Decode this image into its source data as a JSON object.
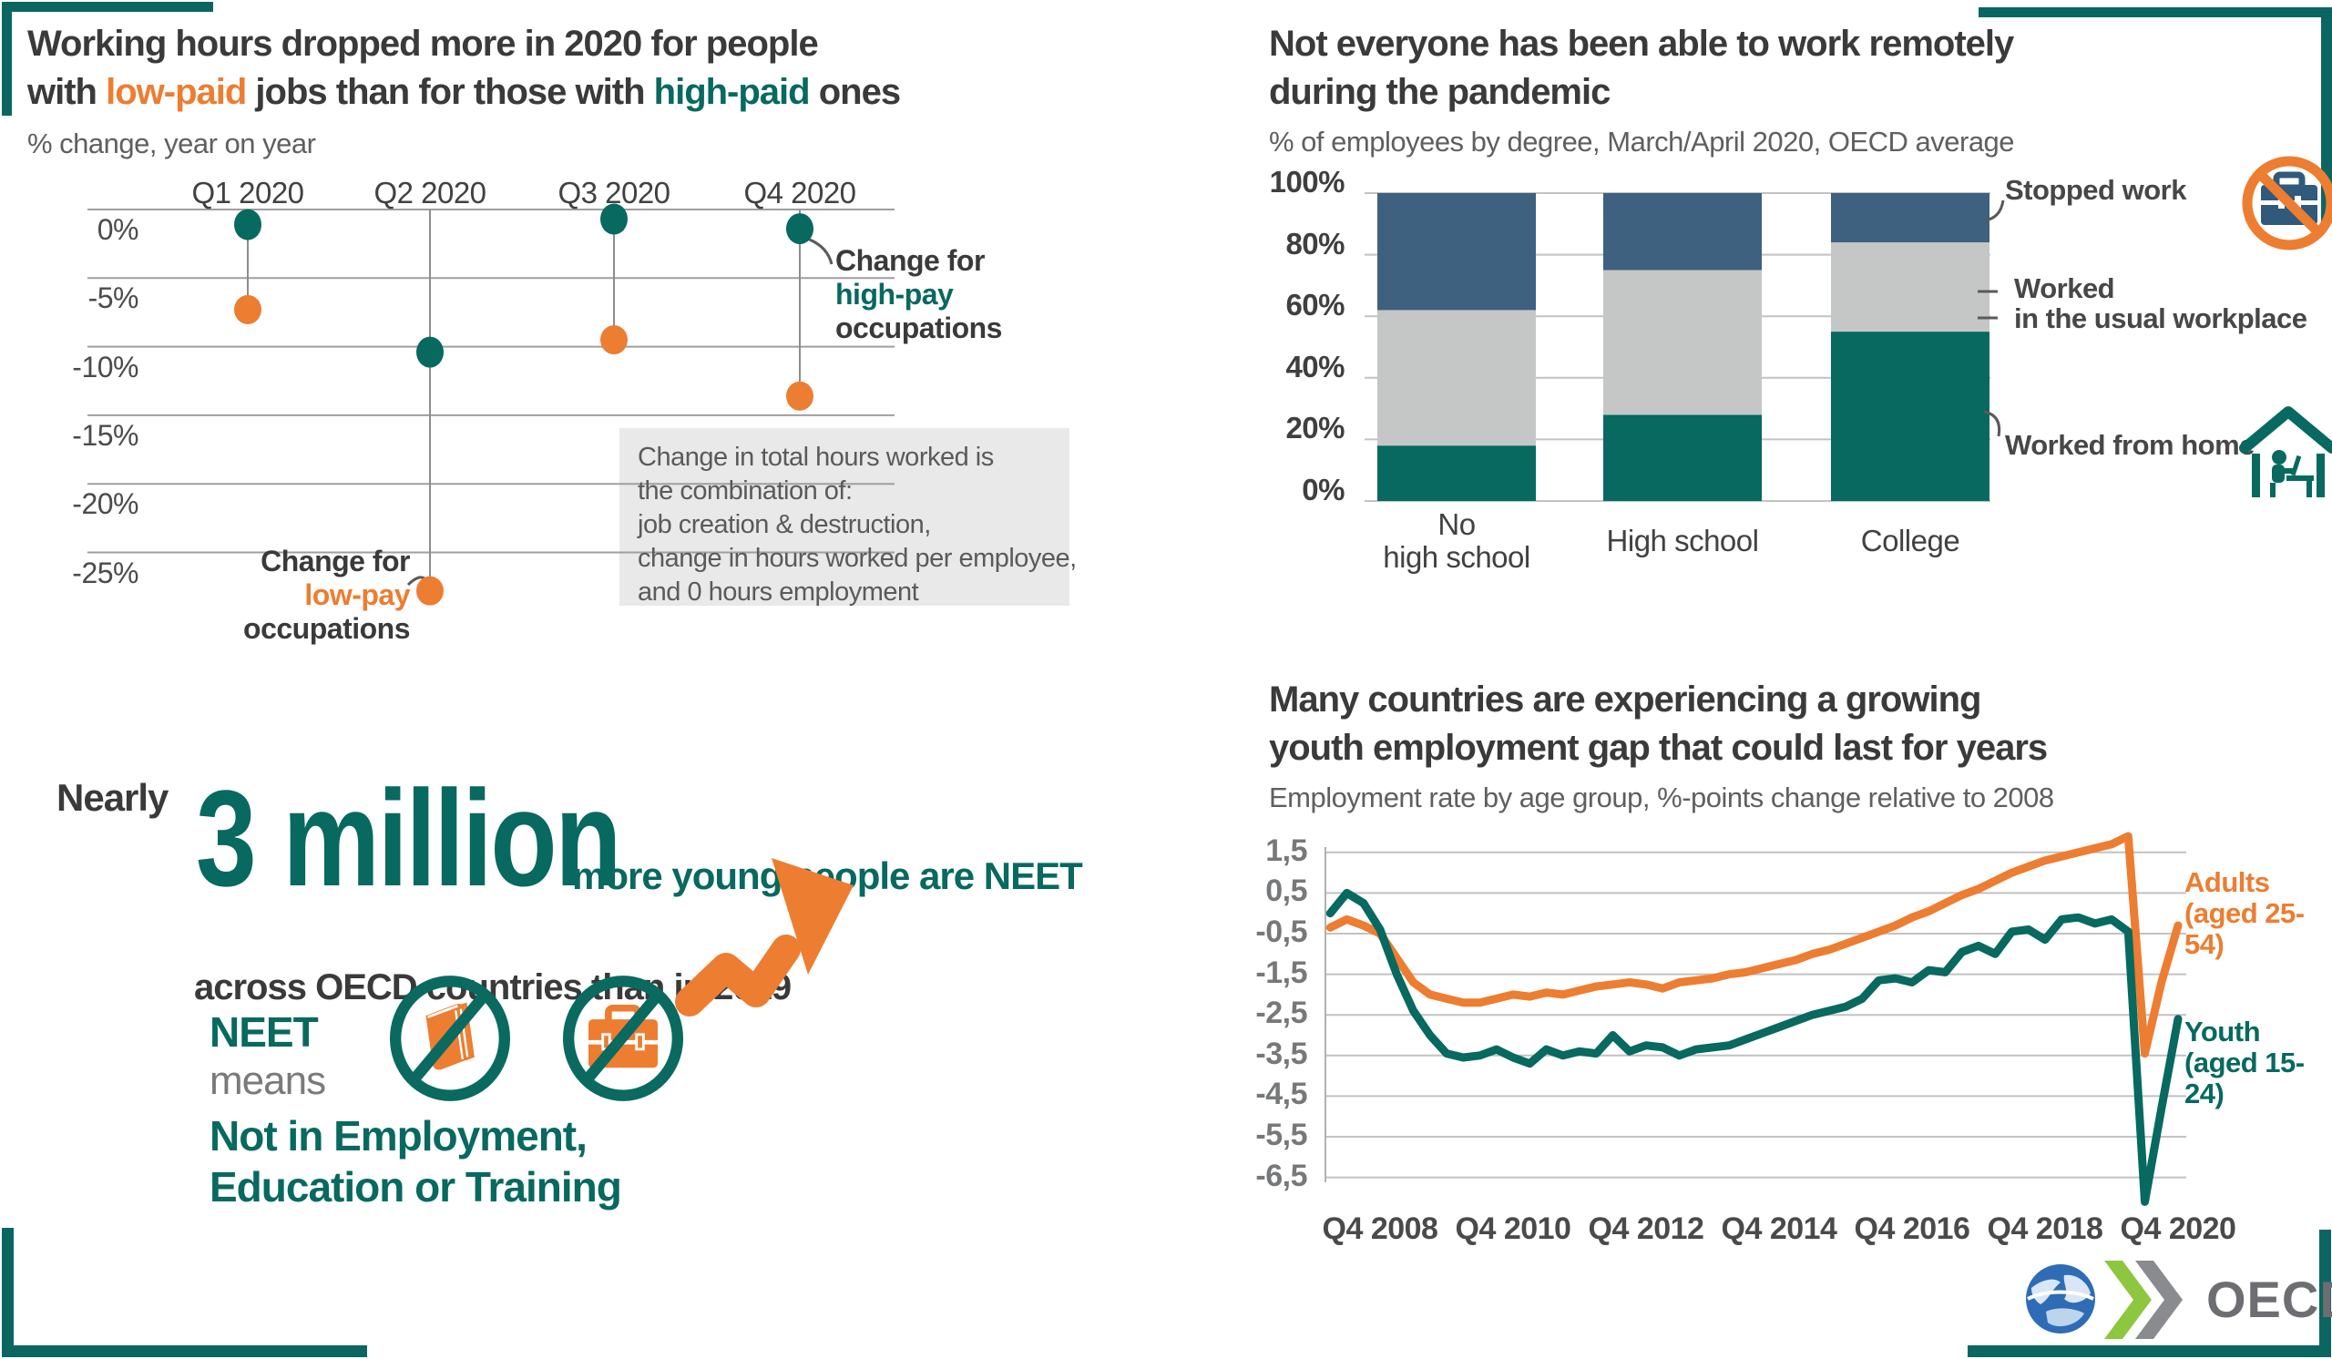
{
  "palette": {
    "teal": "#07695f",
    "orange": "#ed7d31",
    "steel_blue": "#3d617e",
    "light_gray": "#c5c7c6",
    "dark_text": "#3a3a3a",
    "gray_text": "#5f5f5f",
    "grid": "#9f9f9f",
    "note_box": "#e9e9e9",
    "corner": "#0b6661",
    "logo_gray": "#6d6e71",
    "chevron_green": "#8dc63f",
    "chevron_gray": "#898b8e",
    "globe_blue": "#2e6cb5"
  },
  "hours_section": {
    "title_line1": "Working hours dropped more in 2020 for people",
    "title_line2_pre": "with ",
    "title_low": "low-paid",
    "title_mid": " jobs than for those with ",
    "title_high": "high-paid",
    "title_line2_post": " ones",
    "subtitle": "% change, year on year",
    "legend_high": {
      "l1": "Change for",
      "l2": "high-pay",
      "l3": "occupations"
    },
    "legend_low": {
      "l1": "Change for",
      "l2": "low-pay",
      "l3": "occupations"
    },
    "note_lines": [
      "Change in total hours worked is",
      "the combination of:",
      "job creation & destruction,",
      "change in hours worked per employee,",
      "and 0 hours employment"
    ]
  },
  "remote_section": {
    "title_line1": "Not everyone has been able to work remotely",
    "title_line2": "during the pandemic",
    "subtitle": "% of employees by degree, March/April 2020, OECD average",
    "legend": {
      "stopped": "Stopped work",
      "usual_l1": "Worked",
      "usual_l2": "in the usual workplace",
      "home": "Worked from home"
    }
  },
  "neet_section": {
    "nearly": "Nearly",
    "big_number": "3 million",
    "tail": "more young people are NEET",
    "line2": "across OECD countries than in 2019",
    "neet": "NEET",
    "means": "means",
    "def_line1": "Not in Employment,",
    "def_line2": "Education or Training"
  },
  "employment_section": {
    "title_line1": "Many countries are experiencing a growing",
    "title_line2": "youth employment gap that could last for years",
    "subtitle": "Employment rate by age group, %-points change relative to 2008",
    "adults_label": "Adults",
    "adults_sub": "(aged 25-54)",
    "youth_label": "Youth",
    "youth_sub": "(aged 15-24)"
  },
  "logo": {
    "text": "OECD"
  },
  "chart_data": [
    {
      "id": "hours_change",
      "type": "scatter",
      "title": "Working hours dropped more in 2020 for people with low-paid jobs than for those with high-paid ones",
      "ylabel": "% change, year on year",
      "categories": [
        "Q1 2020",
        "Q2 2020",
        "Q3 2020",
        "Q4 2020"
      ],
      "y_ticks": [
        "0%",
        "-5%",
        "-10%",
        "-15%",
        "-20%",
        "-25%"
      ],
      "ylim": [
        -28,
        0
      ],
      "grid": "horizontal",
      "series": [
        {
          "name": "Change for high-pay occupations",
          "color": "#07695f",
          "values": [
            -1.1,
            -10.4,
            -0.7,
            -1.4
          ]
        },
        {
          "name": "Change for low-pay occupations",
          "color": "#ed7d31",
          "values": [
            -7.3,
            -27.8,
            -9.5,
            -13.6
          ]
        }
      ]
    },
    {
      "id": "remote_work",
      "type": "bar",
      "stacked": true,
      "title": "Not everyone has been able to work remotely during the pandemic",
      "ylabel": "% of employees by degree, March/April 2020, OECD average",
      "categories": [
        "No high school",
        "High school",
        "College"
      ],
      "category_lines": [
        [
          "No",
          "high school"
        ],
        [
          "High school"
        ],
        [
          "College"
        ]
      ],
      "y_ticks": [
        "100%",
        "80%",
        "60%",
        "40%",
        "20%",
        "0%"
      ],
      "ylim": [
        0,
        100
      ],
      "legend_position": "right",
      "series": [
        {
          "name": "Worked from home",
          "color": "#07695f",
          "values": [
            18,
            28,
            55
          ]
        },
        {
          "name": "Worked in the usual workplace",
          "color": "#c5c7c6",
          "values": [
            44,
            47,
            29
          ]
        },
        {
          "name": "Stopped work",
          "color": "#3d617e",
          "values": [
            38,
            25,
            16
          ]
        }
      ]
    },
    {
      "id": "employment_gap",
      "type": "line",
      "title": "Many countries are experiencing a growing youth employment gap that could last for years",
      "ylabel": "Employment rate by age group, %-points change relative to 2008",
      "x_start": "2008-Q1",
      "x_step": "quarter",
      "x_ticks": [
        "Q4 2008",
        "Q4 2010",
        "Q4 2012",
        "Q4 2014",
        "Q4 2016",
        "Q4 2018",
        "Q4 2020"
      ],
      "y_ticks": [
        "1,5",
        "0,5",
        "-0,5",
        "-1,5",
        "-2,5",
        "-3,5",
        "-4,5",
        "-5,5",
        "-6,5"
      ],
      "y_tick_values": [
        1.5,
        0.5,
        -0.5,
        -1.5,
        -2.5,
        -3.5,
        -4.5,
        -5.5,
        -6.5
      ],
      "ylim": [
        -7.2,
        2.1
      ],
      "grid": "horizontal",
      "series": [
        {
          "name": "Adults (aged 25-54)",
          "color": "#ed7d31",
          "values": [
            -0.35,
            -0.15,
            -0.3,
            -0.5,
            -1.1,
            -1.7,
            -2.0,
            -2.1,
            -2.2,
            -2.2,
            -2.1,
            -2.0,
            -2.05,
            -1.95,
            -2.0,
            -1.9,
            -1.8,
            -1.75,
            -1.7,
            -1.75,
            -1.85,
            -1.7,
            -1.65,
            -1.6,
            -1.5,
            -1.45,
            -1.35,
            -1.25,
            -1.15,
            -1.0,
            -0.9,
            -0.75,
            -0.6,
            -0.45,
            -0.3,
            -0.1,
            0.05,
            0.25,
            0.45,
            0.6,
            0.8,
            1.0,
            1.15,
            1.3,
            1.4,
            1.5,
            1.6,
            1.7,
            1.9,
            -3.45,
            -1.7,
            -0.3
          ]
        },
        {
          "name": "Youth (aged 15-24)",
          "color": "#07695f",
          "values": [
            0.0,
            0.5,
            0.25,
            -0.4,
            -1.5,
            -2.4,
            -3.0,
            -3.45,
            -3.55,
            -3.5,
            -3.35,
            -3.55,
            -3.7,
            -3.35,
            -3.5,
            -3.4,
            -3.45,
            -3.0,
            -3.4,
            -3.25,
            -3.3,
            -3.5,
            -3.35,
            -3.3,
            -3.25,
            -3.1,
            -2.95,
            -2.8,
            -2.65,
            -2.5,
            -2.4,
            -2.3,
            -2.1,
            -1.65,
            -1.6,
            -1.7,
            -1.4,
            -1.45,
            -0.95,
            -0.8,
            -1.0,
            -0.45,
            -0.4,
            -0.65,
            -0.15,
            -0.1,
            -0.25,
            -0.15,
            -0.45,
            -7.1,
            -4.8,
            -2.6
          ]
        }
      ]
    }
  ]
}
